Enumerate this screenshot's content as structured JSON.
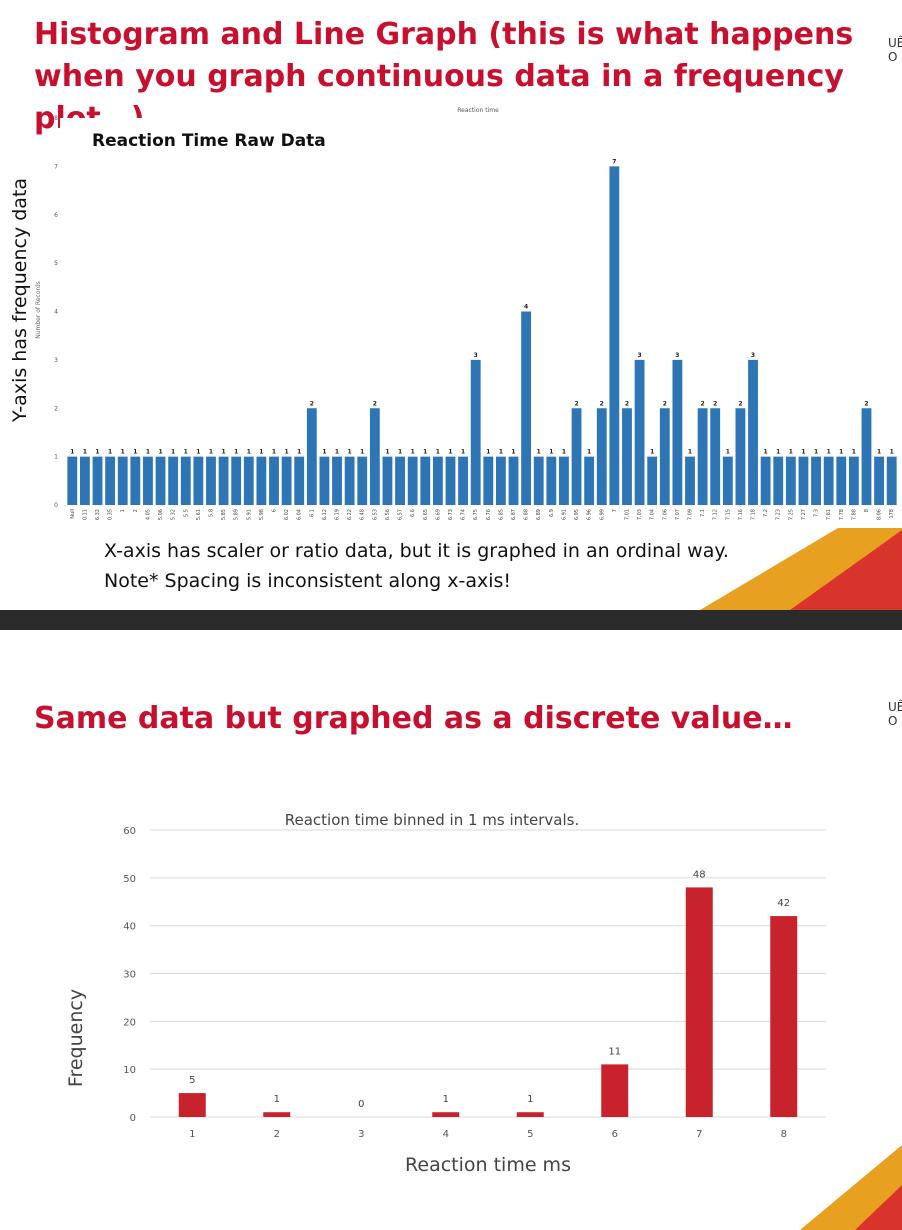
{
  "slide1": {
    "title": "Histogram and Line Graph (this is what happens when you graph continuous data in a frequency plot…)",
    "corner_text": "UÊ O",
    "side_label": "Y-axis has frequency data",
    "note1": "X-axis has scaler or ratio data, but it is graphed in an ordinal way.",
    "note2": "Note* Spacing is inconsistent along x-axis!"
  },
  "slide2": {
    "title": "Same data but graphed as a discrete value…",
    "corner_text": "UÊ O"
  },
  "chart_data": [
    {
      "type": "bar",
      "title": "Reaction Time Raw Data",
      "top_label": "Reaction time",
      "ylabel": "Number of Records",
      "ylim": [
        0,
        8
      ],
      "yticks": [
        0,
        1,
        2,
        3,
        4,
        5,
        6,
        7,
        8
      ],
      "grid": false,
      "bar_color": "#2e75b6",
      "categories": [
        "Null",
        "0.11",
        "6.32",
        "0.35",
        "1",
        "2",
        "4.05",
        "5.06",
        "5.32",
        "5.5",
        "5.61",
        "5.8",
        "5.85",
        "5.89",
        "5.91",
        "5.98",
        "6",
        "6.02",
        "6.04",
        "6.1",
        "6.12",
        "6.19",
        "6.22",
        "6.48",
        "6.53",
        "6.56",
        "6.57",
        "6.6",
        "6.65",
        "6.69",
        "6.73",
        "6.74",
        "6.75",
        "6.76",
        "6.85",
        "6.87",
        "6.88",
        "6.89",
        "6.9",
        "6.91",
        "6.95",
        "6.96",
        "6.99",
        "7",
        "7.01",
        "7.03",
        "7.04",
        "7.06",
        "7.07",
        "7.09",
        "7.1",
        "7.12",
        "7.15",
        "7.16",
        "7.18",
        "7.2",
        "7.23",
        "7.25",
        "7.27",
        "7.3",
        "7.61",
        "7.78",
        "7.88",
        "8",
        "8.06",
        "178"
      ],
      "values": [
        1,
        1,
        1,
        1,
        1,
        1,
        1,
        1,
        1,
        1,
        1,
        1,
        1,
        1,
        1,
        1,
        1,
        1,
        1,
        2,
        1,
        1,
        1,
        1,
        2,
        1,
        1,
        1,
        1,
        1,
        1,
        1,
        3,
        1,
        1,
        1,
        4,
        1,
        1,
        1,
        2,
        1,
        2,
        7,
        2,
        3,
        1,
        2,
        3,
        1,
        2,
        2,
        1,
        2,
        3,
        1,
        1,
        1,
        1,
        1,
        1,
        1,
        1,
        2,
        1,
        1
      ]
    },
    {
      "type": "bar",
      "title": "Reaction time binned in 1 ms intervals.",
      "xlabel": "Reaction time ms",
      "ylabel": "Frequency",
      "ylim": [
        0,
        60
      ],
      "yticks": [
        0,
        10,
        20,
        30,
        40,
        50,
        60
      ],
      "grid": true,
      "bar_color": "#c8232c",
      "categories": [
        "1",
        "2",
        "3",
        "4",
        "5",
        "6",
        "7",
        "8"
      ],
      "values": [
        5,
        1,
        0,
        1,
        1,
        11,
        48,
        42
      ]
    }
  ]
}
